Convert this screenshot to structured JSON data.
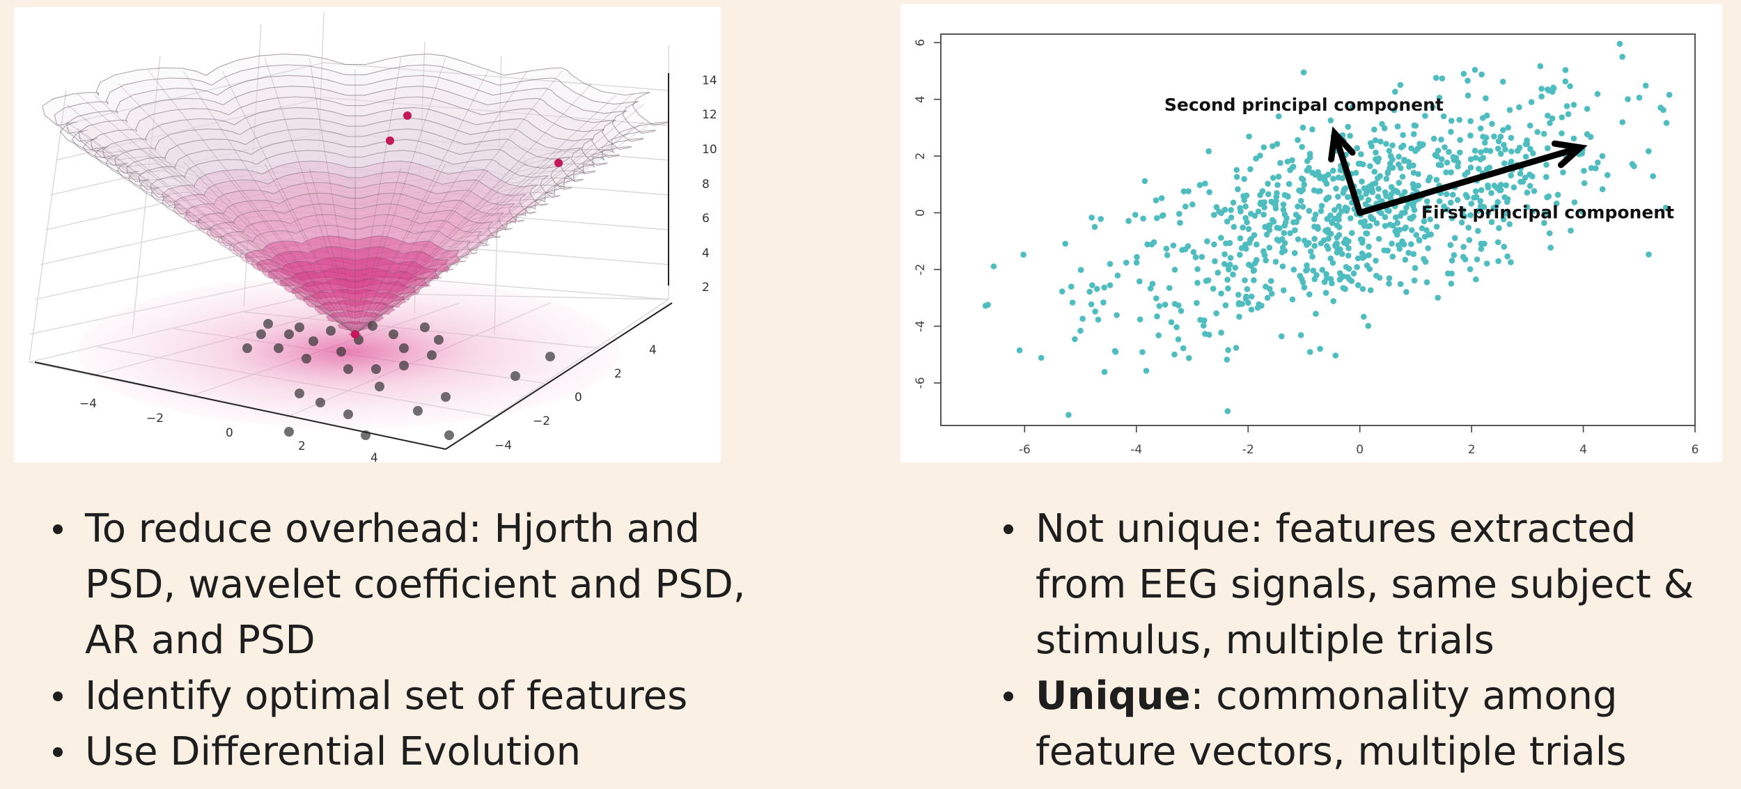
{
  "surface_plot": {
    "z_tick_labels": [
      "14",
      "12",
      "10",
      "8",
      "6",
      "4",
      "2"
    ],
    "x_tick_labels": [
      "−4",
      "−2",
      "0",
      "2",
      "4"
    ],
    "y_tick_labels": [
      "4",
      "2",
      "0",
      "−2",
      "−4"
    ],
    "colors": {
      "surface": "#d63384",
      "mesh": "#555555",
      "points": "#444444"
    }
  },
  "chart_data": {
    "type": "scatter",
    "title": "",
    "xlabel": "",
    "ylabel": "",
    "xlim": [
      -7.5,
      6
    ],
    "ylim": [
      -7.5,
      6.3
    ],
    "x_ticks": [
      -6,
      -4,
      -2,
      0,
      2,
      4,
      6
    ],
    "y_ticks": [
      -6,
      -4,
      -2,
      0,
      2,
      4,
      6
    ],
    "x_tick_labels": [
      "-6",
      "-4",
      "-2",
      "0",
      "2",
      "4",
      "6"
    ],
    "y_tick_labels": [
      "-6",
      "-4",
      "-2",
      "0",
      "2",
      "4",
      "6"
    ],
    "point_color": "#4fbcc0",
    "n_points": 900,
    "correlation": 0.6,
    "origin": [
      0,
      0
    ],
    "annotations": [
      {
        "text": "Second principal component",
        "arrow_to": [
          -0.45,
          2.8
        ],
        "anchor": [
          -3.5,
          3.6
        ]
      },
      {
        "text": "First principal component",
        "arrow_to": [
          3.95,
          2.3
        ],
        "anchor": [
          1.1,
          -0.2
        ]
      }
    ]
  },
  "left_bullets": [
    {
      "text": "To reduce overhead: Hjorth and PSD, wavelet coefficient and PSD, AR and PSD"
    },
    {
      "text": "Identify optimal set of features"
    },
    {
      "text": "Use Differential Evolution"
    }
  ],
  "right_bullets": [
    {
      "strong": "",
      "text": "Not unique: features extracted from EEG signals, same subject & stimulus, multiple trials"
    },
    {
      "strong": "Unique",
      "text": ": commonality among feature vectors, multiple trials"
    }
  ]
}
